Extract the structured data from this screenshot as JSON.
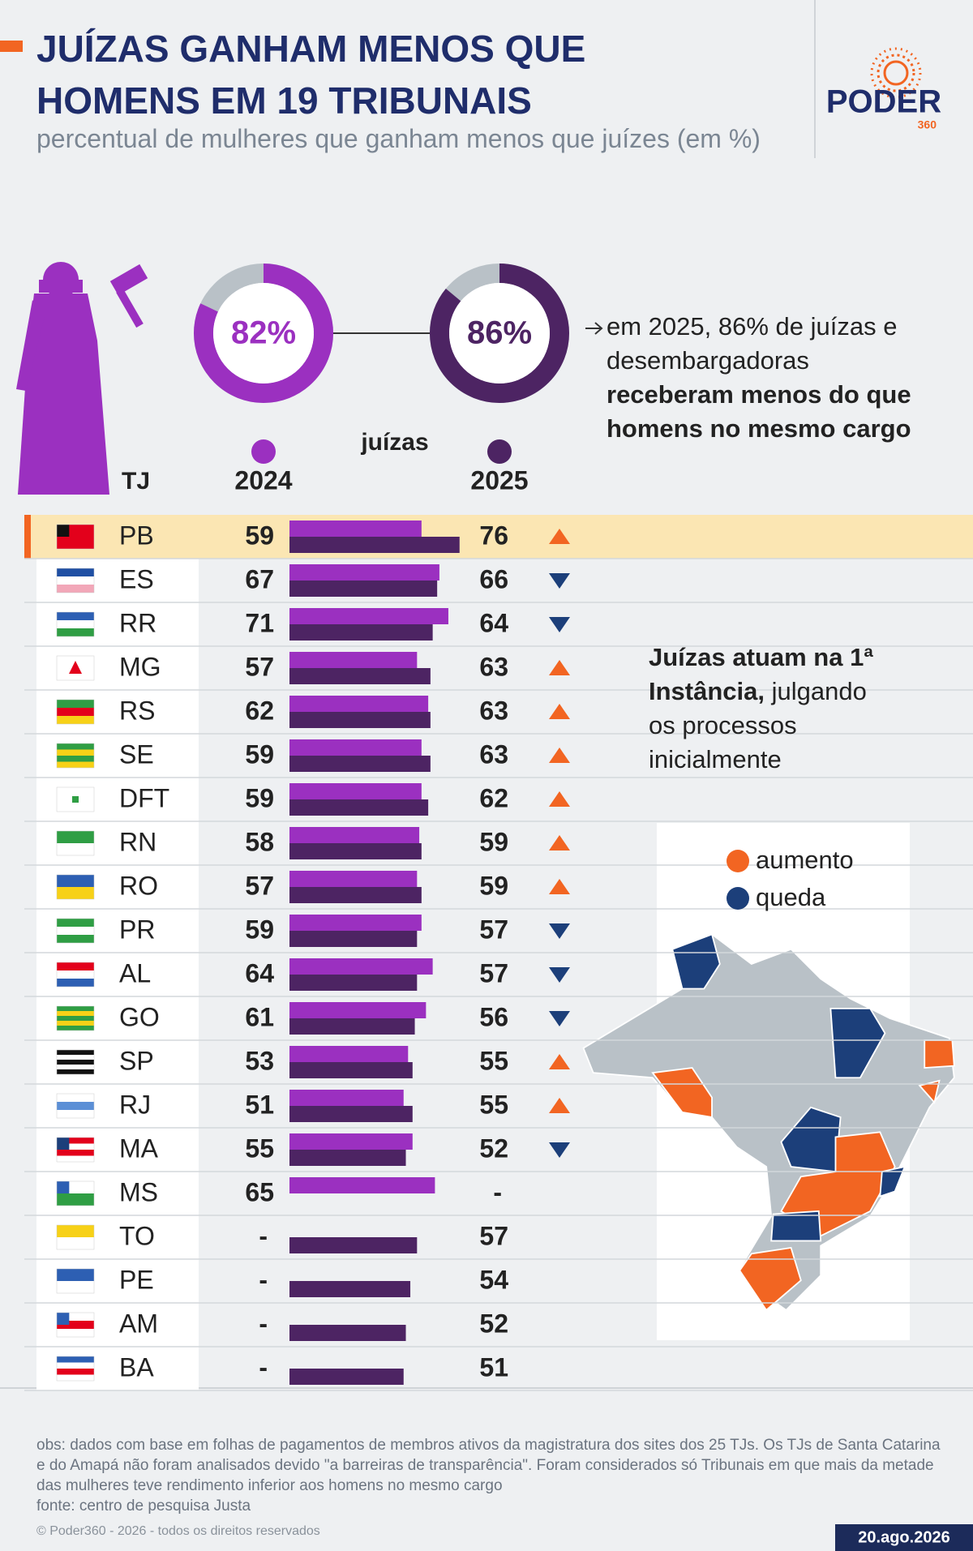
{
  "header": {
    "title": "JUÍZAS GANHAM MENOS QUE HOMENS EM 19 TRIBUNAIS",
    "subtitle": "percentual de mulheres que ganham menos que juízes (em %)"
  },
  "logo": {
    "name": "PODER",
    "number": "360"
  },
  "donuts": {
    "values": [
      82,
      86
    ],
    "value_labels": [
      "82%",
      "86%"
    ],
    "colors": [
      "#9b30c0",
      "#4d2463"
    ],
    "rest_color": "#b9c1c7"
  },
  "callout": {
    "text": "em 2025, 86% de juízas e desembargadoras",
    "bold": "receberam menos do que homens no mesmo cargo"
  },
  "chart_data": {
    "type": "bar",
    "group_label": "juízas",
    "category_label": "TJ",
    "missing_label": "-",
    "categories": [
      "PB",
      "ES",
      "RR",
      "MG",
      "RS",
      "SE",
      "DFT",
      "RN",
      "RO",
      "PR",
      "AL",
      "GO",
      "SP",
      "RJ",
      "MA",
      "MS",
      "TO",
      "PE",
      "AM",
      "BA"
    ],
    "series": [
      {
        "name": "2024",
        "color": "#9b30c0",
        "values": [
          59,
          67,
          71,
          57,
          62,
          59,
          59,
          58,
          57,
          59,
          64,
          61,
          53,
          51,
          55,
          65,
          null,
          null,
          null,
          null
        ]
      },
      {
        "name": "2025",
        "color": "#4d2463",
        "values": [
          76,
          66,
          64,
          63,
          63,
          63,
          62,
          59,
          59,
          57,
          57,
          56,
          55,
          55,
          52,
          null,
          57,
          54,
          52,
          51
        ]
      }
    ],
    "trend_colors": {
      "up": "#f26522",
      "down": "#1c3f7a"
    }
  },
  "note": {
    "bold": "Juízas atuam na 1ª Instância,",
    "text": "julgando os processos inicialmente"
  },
  "map_legend": [
    {
      "label": "aumento",
      "color": "#f26522"
    },
    {
      "label": "queda",
      "color": "#1c3f7a"
    }
  ],
  "footer": {
    "obs": "obs: dados com base em folhas de pagamentos de membros ativos da magistratura dos sites dos 25 TJs. Os TJs de Santa Catarina e do Amapá não foram analisados devido \"a barreiras de transparência\". Foram considerados só Tribunais em que mais da metade das mulheres teve rendimento inferior aos homens no mesmo cargo",
    "source": "fonte: centro de pesquisa Justa",
    "copyright": "© Poder360 - 2026 - todos os direitos reservados",
    "date": "20.ago.2026"
  }
}
